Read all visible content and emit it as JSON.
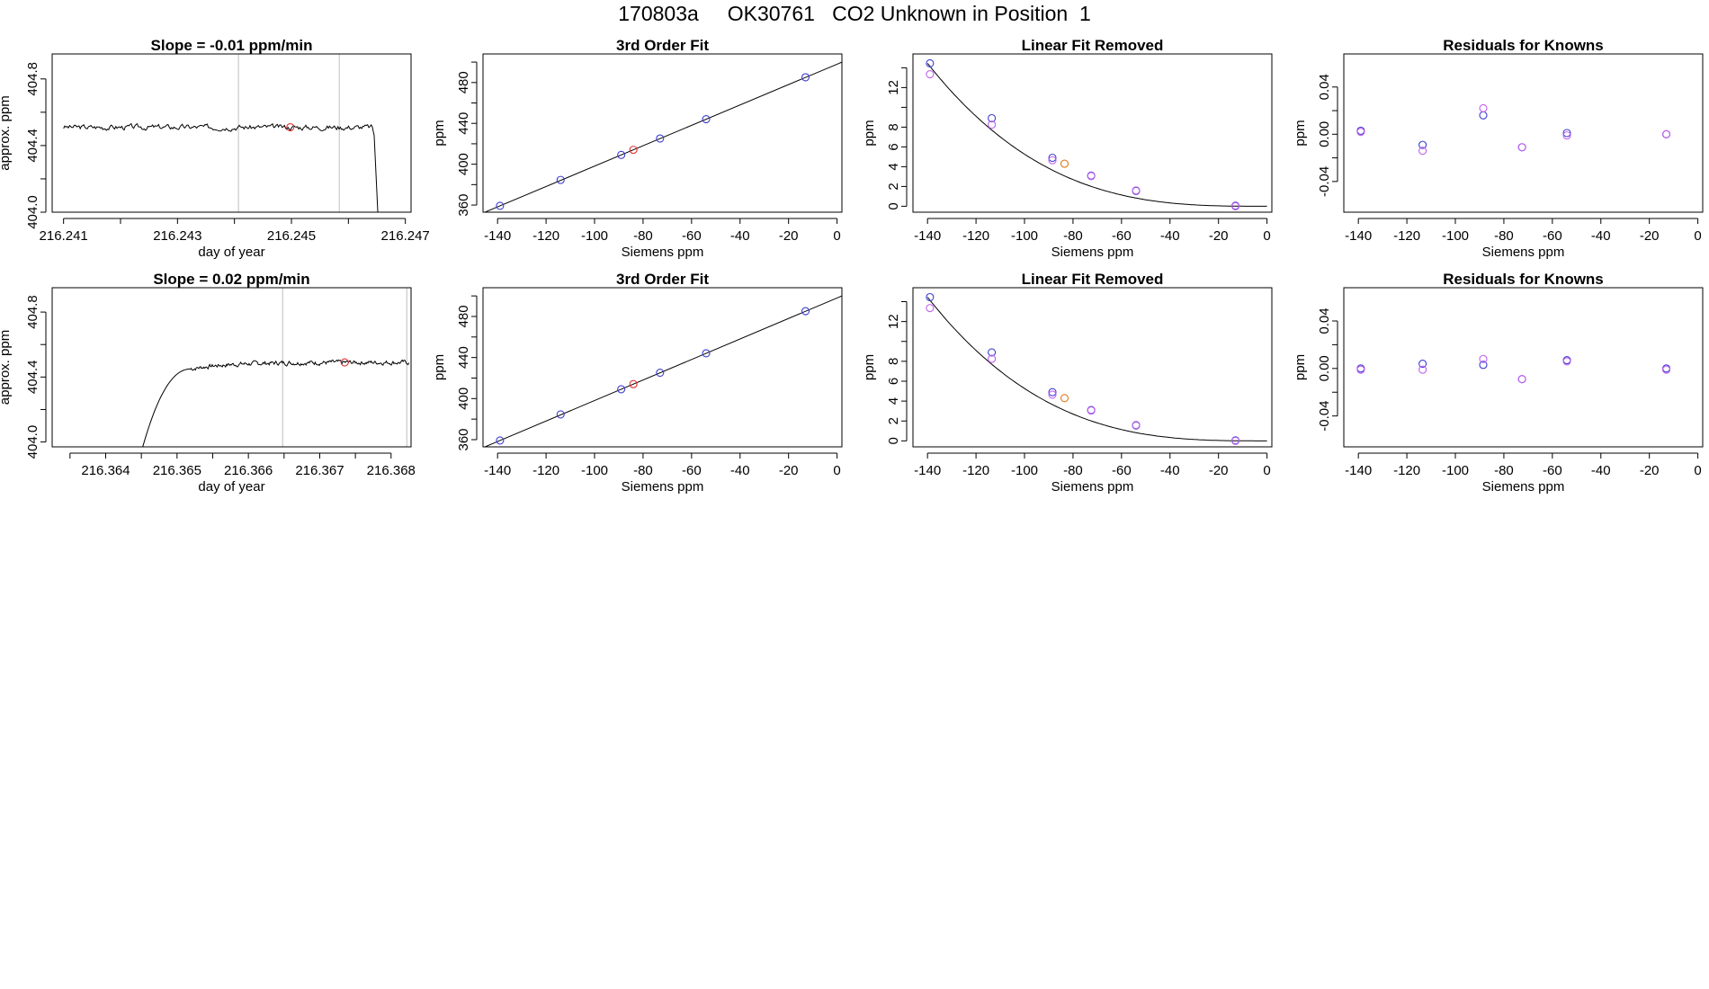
{
  "page": {
    "title": "170803a     OK30761   CO2 Unknown in Position  1"
  },
  "colors": {
    "frame": "#000000",
    "line": "#000000",
    "vline": "#bebebe",
    "blue": "#3c3cd2",
    "magenta": "#c060f0",
    "red": "#e03030",
    "orange": "#e07818",
    "purple": "#7030d0"
  },
  "chart_data": [
    {
      "id": "r1c1",
      "type": "line",
      "title": "Slope =  -0.01  ppm/min",
      "xlabel": "day of year",
      "ylabel": "approx. ppm",
      "xlim": [
        216.2408,
        216.2471
      ],
      "ylim": [
        404.0,
        404.95
      ],
      "xticks": [
        216.241,
        216.242,
        216.243,
        216.244,
        216.245,
        216.246,
        216.247
      ],
      "xtick_labels": [
        "216.241",
        "",
        "216.243",
        "",
        "216.245",
        "",
        "216.247"
      ],
      "yticks": [
        404.0,
        404.2,
        404.4,
        404.6,
        404.8
      ],
      "ytick_labels": [
        "404.0",
        "",
        "404.4",
        "",
        "404.8"
      ],
      "vlines": [
        216.24407,
        216.24584
      ],
      "series": [
        {
          "kind": "noise",
          "x_start": 216.241,
          "x_end": 216.24642,
          "level": 404.51,
          "amp": 0.012,
          "seed": 3,
          "ramp": {
            "mode": "drop",
            "x_start": 216.24642,
            "x_end": 216.24653,
            "to": 403.9
          }
        },
        {
          "kind": "points",
          "marker": "red",
          "x": [
            216.24498
          ],
          "y": [
            404.51
          ]
        }
      ]
    },
    {
      "id": "r1c2",
      "type": "scatter",
      "title": "3rd Order Fit",
      "xlabel": "Siemens ppm",
      "ylabel": "ppm",
      "xlim": [
        -146,
        2
      ],
      "ylim": [
        353,
        508
      ],
      "xticks": [
        -140,
        -120,
        -100,
        -80,
        -60,
        -40,
        -20,
        0
      ],
      "yticks": [
        360,
        380,
        400,
        420,
        440,
        460,
        480,
        500
      ],
      "ytick_labels": [
        "360",
        "",
        "400",
        "",
        "440",
        "",
        "480",
        ""
      ],
      "curve": {
        "kind": "linear",
        "x": [
          -140,
          0
        ],
        "y": [
          358.2,
          498.0
        ]
      },
      "series": [
        {
          "kind": "points",
          "marker": "blue",
          "x": [
            -139,
            -114,
            -89,
            -73,
            -54,
            -13
          ],
          "y": [
            359.2,
            384.6,
            409.1,
            425.2,
            444.1,
            485.2
          ]
        },
        {
          "kind": "points",
          "marker": "red",
          "x": [
            -84
          ],
          "y": [
            414.1
          ]
        }
      ]
    },
    {
      "id": "r1c3",
      "type": "scatter",
      "title": "Linear Fit Removed",
      "xlabel": "Siemens ppm",
      "ylabel": "ppm",
      "xlim": [
        -146,
        2
      ],
      "ylim": [
        -0.6,
        15.4
      ],
      "xticks": [
        -140,
        -120,
        -100,
        -80,
        -60,
        -40,
        -20,
        0
      ],
      "yticks": [
        0,
        2,
        4,
        6,
        8,
        10,
        12,
        14
      ],
      "ytick_labels": [
        "0",
        "2",
        "4",
        "6",
        "8",
        "",
        "12",
        ""
      ],
      "curve": {
        "kind": "cubic",
        "x0": -140,
        "y0": 14.45,
        "x_from": -140,
        "x_to": 0
      },
      "series": [
        {
          "kind": "points",
          "marker": "blue",
          "x": [
            -139,
            -113.5,
            -88.5,
            -72.5,
            -54,
            -13
          ],
          "y": [
            14.45,
            8.9,
            4.9,
            3.1,
            1.55,
            0.05
          ]
        },
        {
          "kind": "points",
          "marker": "magenta",
          "x": [
            -139,
            -113.5,
            -88.5,
            -72.5,
            -54,
            -13
          ],
          "y": [
            13.35,
            8.25,
            4.65,
            3.05,
            1.6,
            0.0
          ]
        },
        {
          "kind": "points",
          "marker": "orange",
          "x": [
            -83.5
          ],
          "y": [
            4.3
          ]
        }
      ]
    },
    {
      "id": "r1c4",
      "type": "scatter",
      "title": "Residuals for Knowns",
      "xlabel": "Siemens ppm",
      "ylabel": "ppm",
      "xlim": [
        -146,
        2
      ],
      "ylim": [
        -0.066,
        0.068
      ],
      "xticks": [
        -140,
        -120,
        -100,
        -80,
        -60,
        -40,
        -20,
        0
      ],
      "yticks": [
        -0.04,
        -0.02,
        0.0,
        0.02,
        0.04
      ],
      "ytick_labels": [
        "-0.04",
        "",
        "0.00",
        "",
        "0.04"
      ],
      "series": [
        {
          "kind": "points",
          "marker": "blue",
          "x": [
            -139,
            -113.5,
            -88.5,
            -72.5,
            -54,
            -13
          ],
          "y": [
            0.003,
            -0.009,
            0.016,
            -0.011,
            0.001,
            0.0
          ]
        },
        {
          "kind": "points",
          "marker": "magenta",
          "x": [
            -139,
            -113.5,
            -88.5,
            -72.5,
            -54,
            -13
          ],
          "y": [
            0.002,
            -0.014,
            0.022,
            -0.011,
            -0.001,
            0.0
          ]
        }
      ]
    },
    {
      "id": "r2c1",
      "type": "line",
      "title": "Slope =  0.02  ppm/min",
      "xlabel": "day of year",
      "ylabel": "approx. ppm",
      "xlim": [
        216.36325,
        216.36828
      ],
      "ylim": [
        403.97,
        404.95
      ],
      "xticks": [
        216.3635,
        216.364,
        216.3645,
        216.365,
        216.3655,
        216.366,
        216.3665,
        216.367,
        216.3675,
        216.368
      ],
      "xtick_labels": [
        "",
        "216.364",
        "",
        "216.365",
        "",
        "216.366",
        "",
        "216.367",
        "",
        "216.368"
      ],
      "yticks": [
        404.0,
        404.2,
        404.4,
        404.6,
        404.8
      ],
      "ytick_labels": [
        "404.0",
        "",
        "404.4",
        "",
        "404.8"
      ],
      "vlines": [
        216.36648,
        216.36822
      ],
      "series": [
        {
          "kind": "noise",
          "x_start": 216.3652,
          "x_end": 216.36825,
          "level": 404.49,
          "amp": 0.01,
          "seed": 7,
          "ramp": {
            "mode": "rise",
            "x_start": 216.36452,
            "x_end": 216.3652,
            "from": 403.97
          }
        },
        {
          "kind": "points",
          "marker": "red",
          "x": [
            216.36735
          ],
          "y": [
            404.49
          ]
        }
      ]
    },
    {
      "id": "r2c2",
      "type": "scatter",
      "title": "3rd Order Fit",
      "xlabel": "Siemens ppm",
      "ylabel": "ppm",
      "xlim": [
        -146,
        2
      ],
      "ylim": [
        353,
        508
      ],
      "xticks": [
        -140,
        -120,
        -100,
        -80,
        -60,
        -40,
        -20,
        0
      ],
      "yticks": [
        360,
        380,
        400,
        420,
        440,
        460,
        480,
        500
      ],
      "ytick_labels": [
        "360",
        "",
        "400",
        "",
        "440",
        "",
        "480",
        ""
      ],
      "curve": {
        "kind": "linear",
        "x": [
          -140,
          0
        ],
        "y": [
          358.2,
          498.0
        ]
      },
      "series": [
        {
          "kind": "points",
          "marker": "blue",
          "x": [
            -139,
            -114,
            -89,
            -73,
            -54,
            -13
          ],
          "y": [
            359.2,
            384.6,
            409.1,
            425.2,
            444.1,
            485.2
          ]
        },
        {
          "kind": "points",
          "marker": "red",
          "x": [
            -84
          ],
          "y": [
            414.1
          ]
        }
      ]
    },
    {
      "id": "r2c3",
      "type": "scatter",
      "title": "Linear Fit Removed",
      "xlabel": "Siemens ppm",
      "ylabel": "ppm",
      "xlim": [
        -146,
        2
      ],
      "ylim": [
        -0.6,
        15.4
      ],
      "xticks": [
        -140,
        -120,
        -100,
        -80,
        -60,
        -40,
        -20,
        0
      ],
      "yticks": [
        0,
        2,
        4,
        6,
        8,
        10,
        12,
        14
      ],
      "ytick_labels": [
        "0",
        "2",
        "4",
        "6",
        "8",
        "",
        "12",
        ""
      ],
      "curve": {
        "kind": "cubic",
        "x0": -140,
        "y0": 14.45,
        "x_from": -140,
        "x_to": 0
      },
      "series": [
        {
          "kind": "points",
          "marker": "blue",
          "x": [
            -139,
            -113.5,
            -88.5,
            -72.5,
            -54,
            -13
          ],
          "y": [
            14.45,
            8.9,
            4.9,
            3.1,
            1.55,
            0.05
          ]
        },
        {
          "kind": "points",
          "marker": "magenta",
          "x": [
            -139,
            -113.5,
            -88.5,
            -72.5,
            -54,
            -13
          ],
          "y": [
            13.35,
            8.25,
            4.65,
            3.05,
            1.6,
            0.0
          ]
        },
        {
          "kind": "points",
          "marker": "orange",
          "x": [
            -83.5
          ],
          "y": [
            4.3
          ]
        }
      ]
    },
    {
      "id": "r2c4",
      "type": "scatter",
      "title": "Residuals for Knowns",
      "xlabel": "Siemens ppm",
      "ylabel": "ppm",
      "xlim": [
        -146,
        2
      ],
      "ylim": [
        -0.066,
        0.068
      ],
      "xticks": [
        -140,
        -120,
        -100,
        -80,
        -60,
        -40,
        -20,
        0
      ],
      "yticks": [
        -0.04,
        -0.02,
        0.0,
        0.02,
        0.04
      ],
      "ytick_labels": [
        "-0.04",
        "",
        "0.00",
        "",
        "0.04"
      ],
      "series": [
        {
          "kind": "points",
          "marker": "blue",
          "x": [
            -139,
            -113.5,
            -88.5,
            -72.5,
            -54,
            -13
          ],
          "y": [
            0.0,
            0.004,
            0.003,
            -0.009,
            0.007,
            0.0
          ]
        },
        {
          "kind": "points",
          "marker": "magenta",
          "x": [
            -139,
            -113.5,
            -88.5,
            -72.5,
            -54,
            -13
          ],
          "y": [
            -0.001,
            -0.001,
            0.008,
            -0.009,
            0.006,
            -0.001
          ]
        }
      ]
    }
  ]
}
